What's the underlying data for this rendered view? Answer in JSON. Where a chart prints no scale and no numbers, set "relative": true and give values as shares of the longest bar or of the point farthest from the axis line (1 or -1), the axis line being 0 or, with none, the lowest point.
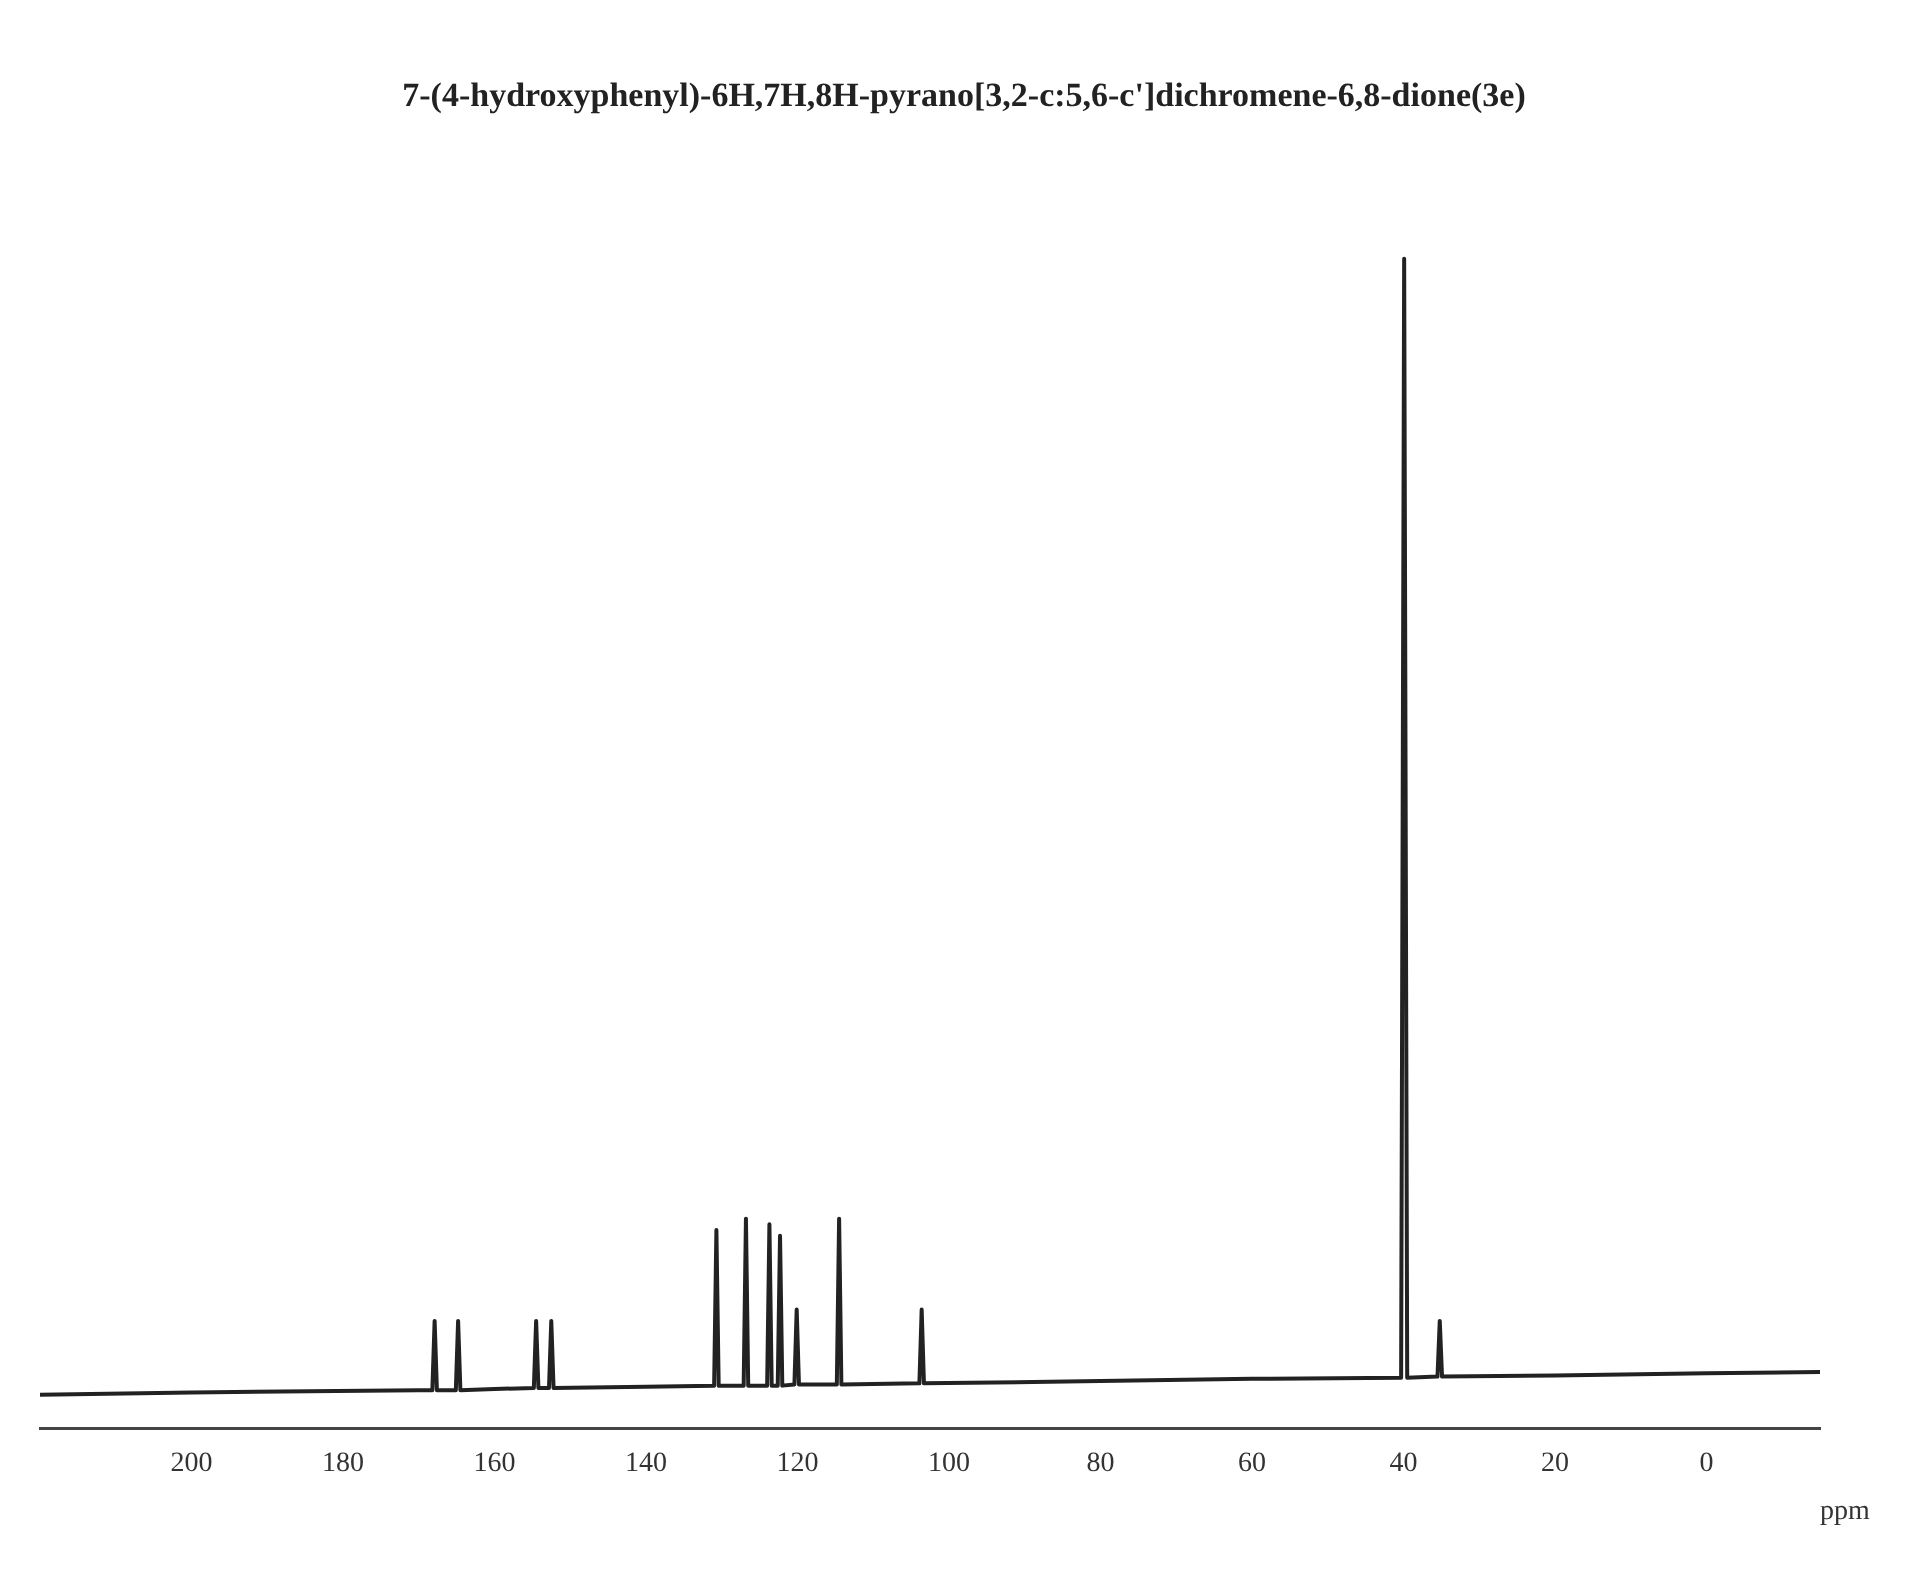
{
  "chart_data": {
    "type": "line",
    "title": "7-(4-hydroxyphenyl)-6H,7H,8H-pyrano[3,2-c:5,6-c']dichromene-6,8-dione(3e)",
    "xlabel": "ppm",
    "relative": true,
    "tick_labels": "x",
    "grid": false,
    "legend": false,
    "marker": "none",
    "line_style": "solid",
    "xlim": [
      220,
      -15
    ],
    "xticks": [
      200,
      180,
      160,
      140,
      120,
      100,
      80,
      60,
      40,
      20,
      0
    ],
    "series": [
      {
        "color": "#222222",
        "x": [
          220,
          200,
          170,
          168.2,
          167.9,
          167.6,
          165.1,
          164.8,
          164.5,
          160,
          154.8,
          154.5,
          154.2,
          152.8,
          152.5,
          152.2,
          140,
          131,
          130.7,
          130.4,
          127.1,
          126.8,
          126.5,
          124,
          123.7,
          123.4,
          122.6,
          122.3,
          122,
          120.4,
          120.1,
          119.8,
          114.8,
          114.5,
          114.2,
          103.9,
          103.6,
          103.3,
          80,
          60,
          40.3,
          39.9,
          39.5,
          35.5,
          35.2,
          34.9,
          20,
          0,
          -15
        ],
        "values": [
          0,
          0.002,
          0.004,
          0.004,
          0.065,
          0.004,
          0.004,
          0.065,
          0.004,
          0.005,
          0.006,
          0.065,
          0.006,
          0.006,
          0.065,
          0.006,
          0.007,
          0.008,
          0.145,
          0.008,
          0.008,
          0.155,
          0.008,
          0.008,
          0.15,
          0.008,
          0.008,
          0.14,
          0.008,
          0.009,
          0.075,
          0.009,
          0.009,
          0.155,
          0.009,
          0.01,
          0.075,
          0.01,
          0.012,
          0.014,
          0.015,
          1,
          0.015,
          0.016,
          0.065,
          0.016,
          0.017,
          0.019,
          0.02
        ]
      }
    ]
  }
}
